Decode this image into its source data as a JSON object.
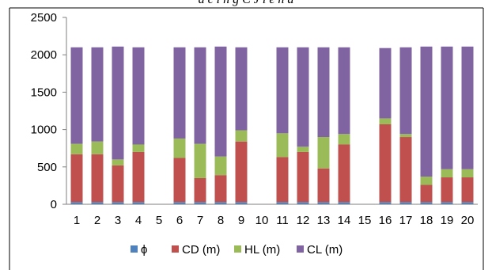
{
  "title_fragment": "a c i n g   C J   l e n a",
  "chart_data": {
    "type": "bar",
    "stacked": true,
    "categories": [
      "1",
      "2",
      "3",
      "4",
      "5",
      "6",
      "7",
      "8",
      "9",
      "10",
      "11",
      "12",
      "13",
      "14",
      "15",
      "16",
      "17",
      "18",
      "19",
      "20"
    ],
    "ylim": [
      0,
      2500
    ],
    "yticks": [
      0,
      500,
      1000,
      1500,
      2000,
      2500
    ],
    "grid": false,
    "legend_position": "bottom",
    "series": [
      {
        "name": "ϕ",
        "color": "#4F81BD",
        "values": [
          30,
          30,
          30,
          30,
          0,
          30,
          30,
          30,
          30,
          0,
          30,
          30,
          30,
          30,
          0,
          30,
          30,
          30,
          30,
          30
        ]
      },
      {
        "name": "CD (m)",
        "color": "#C0504D",
        "values": [
          640,
          640,
          490,
          670,
          0,
          590,
          320,
          360,
          810,
          0,
          600,
          670,
          450,
          770,
          0,
          1040,
          870,
          230,
          330,
          330
        ]
      },
      {
        "name": "HL (m)",
        "color": "#9BBB59",
        "values": [
          140,
          170,
          80,
          100,
          0,
          260,
          460,
          250,
          150,
          0,
          320,
          70,
          420,
          140,
          0,
          80,
          40,
          110,
          110,
          110
        ]
      },
      {
        "name": "CL (m)",
        "color": "#8064A2",
        "values": [
          1290,
          1260,
          1510,
          1300,
          0,
          1220,
          1290,
          1470,
          1110,
          0,
          1150,
          1330,
          1200,
          1160,
          0,
          940,
          1160,
          1740,
          1640,
          1640
        ]
      }
    ]
  }
}
